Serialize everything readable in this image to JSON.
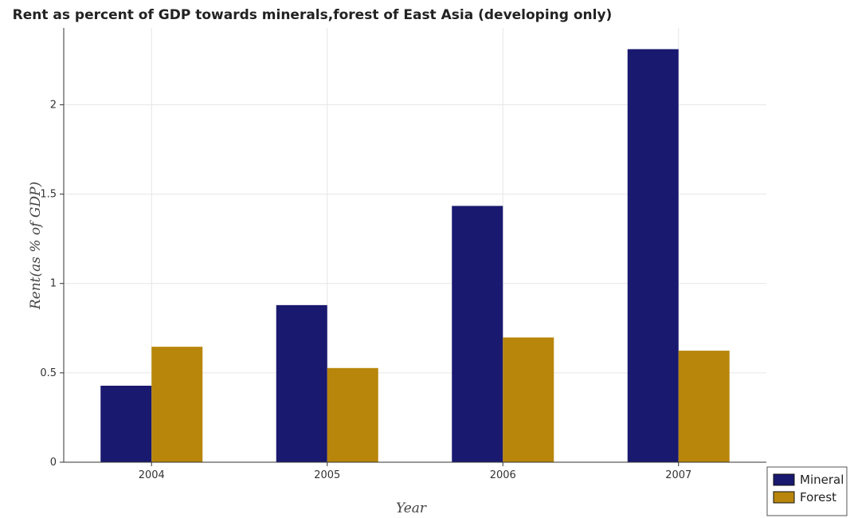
{
  "chart_data": {
    "type": "bar",
    "title": "Rent as percent of GDP towards minerals,forest of East Asia (developing only)",
    "xlabel": "Year",
    "ylabel": "Rent(as % of GDP)",
    "categories": [
      "2004",
      "2005",
      "2006",
      "2007"
    ],
    "series": [
      {
        "name": "Mineral",
        "color": "#191970",
        "values": [
          0.428,
          0.879,
          1.434,
          2.311
        ]
      },
      {
        "name": "Forest",
        "color": "#b8860b",
        "values": [
          0.646,
          0.527,
          0.698,
          0.624
        ]
      }
    ],
    "ylim": [
      0,
      2.43
    ],
    "yticks": [
      0,
      0.5,
      1,
      1.5,
      2
    ],
    "ytick_labels": [
      "0",
      "0.5",
      "1",
      "1.5",
      "2"
    ],
    "grid": true,
    "legend_position": "bottom-right"
  }
}
